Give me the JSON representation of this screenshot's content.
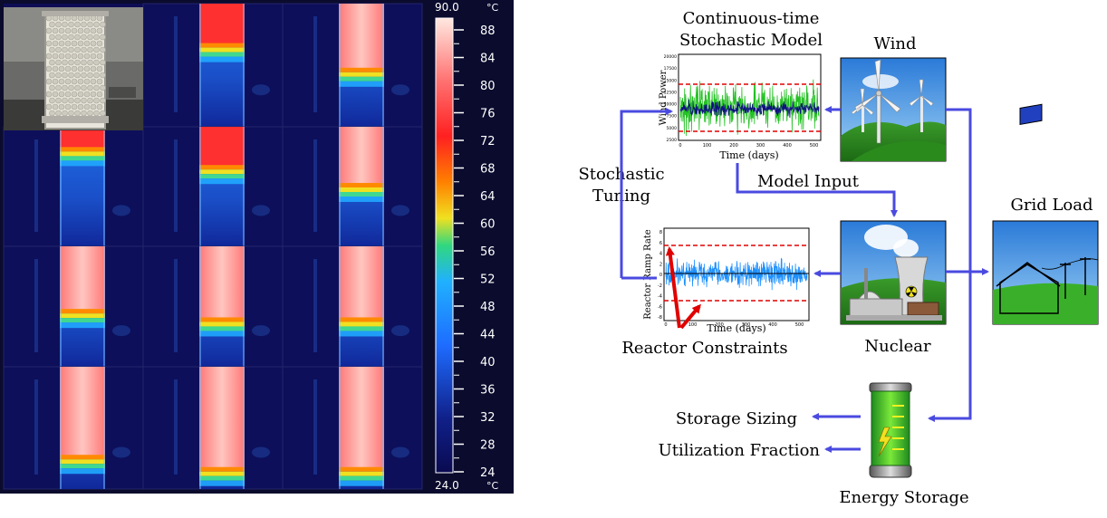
{
  "thermal": {
    "scale_max": "90.0",
    "scale_min": "24.0",
    "unit": "°C",
    "ticks": [
      "88",
      "84",
      "80",
      "76",
      "72",
      "68",
      "64",
      "60",
      "56",
      "52",
      "48",
      "44",
      "40",
      "36",
      "32",
      "28",
      "24"
    ],
    "grid_fill_levels": [
      [
        null,
        0.35,
        0.55
      ],
      [
        0.2,
        0.35,
        0.5
      ],
      [
        0.55,
        0.62,
        0.62
      ],
      [
        0.75,
        0.85,
        0.85
      ]
    ]
  },
  "diagram": {
    "model_title_line1": "Continuous-time",
    "model_title_line2": "Stochastic Model",
    "wind": "Wind",
    "grid_load": "Grid Load",
    "model_input": "Model Input",
    "stochastic_line1": "Stochastic",
    "stochastic_line2": "Tuning",
    "nuclear": "Nuclear",
    "reactor_constraints": "Reactor Constraints",
    "storage_sizing": "Storage Sizing",
    "utilization_fraction": "Utilization Fraction",
    "energy_storage": "Energy Storage",
    "wind_chart": {
      "ylabel": "Wind Power",
      "xlabel": "Time (days)",
      "yticks": [
        "20000",
        "17500",
        "15000",
        "12500",
        "10000",
        "7500",
        "5000",
        "2500"
      ],
      "xticks": [
        "0",
        "100",
        "200",
        "300",
        "400",
        "500"
      ]
    },
    "reactor_chart": {
      "ylabel": "Reactor Ramp Rate",
      "xlabel": "Time (days)",
      "yticks": [
        "8",
        "6",
        "4",
        "2",
        "0",
        "-2",
        "-4",
        "-6",
        "-8"
      ],
      "xticks": [
        "0",
        "100",
        "200",
        "300",
        "400",
        "500"
      ]
    }
  },
  "colors": {
    "arrow": "#4a4ae0",
    "constraint": "#e00000",
    "wind_green": "#22c022",
    "wind_navy": "#101080",
    "reactor_blue": "#1e90ff"
  }
}
